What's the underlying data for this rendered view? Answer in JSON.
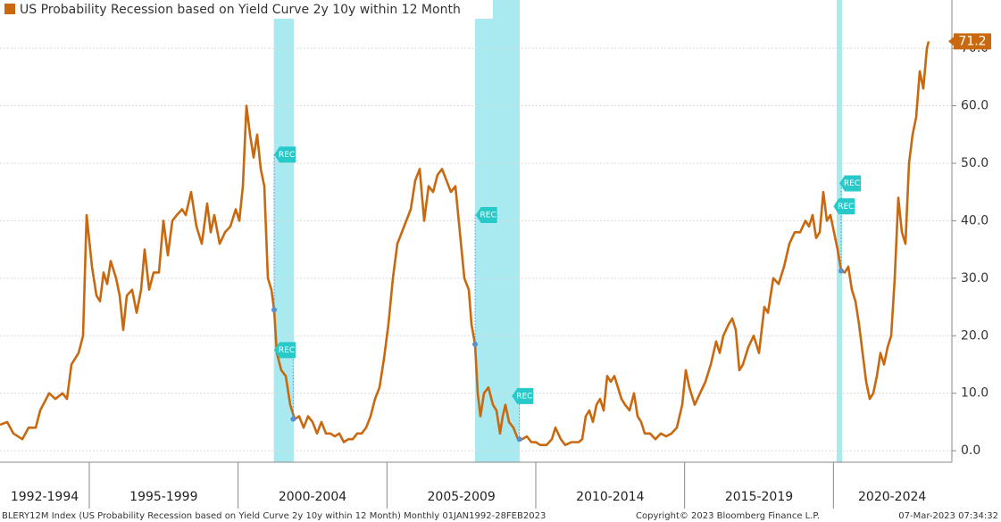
{
  "chart_data": {
    "type": "line",
    "legend_text": "US Probability Recession based on Yield Curve 2y 10y within 12 Month",
    "footer_left": "BLERY12M Index (US Probability Recession based on Yield Curve 2y 10y within 12 Month)  Monthly 01JAN1992-28FEB2023",
    "footer_center": "Copyright© 2023 Bloomberg Finance L.P.",
    "footer_right": "07-Mar-2023 07:34:32",
    "xlim": [
      1992,
      2023.95
    ],
    "ylim": [
      -2,
      78.4
    ],
    "yticks": [
      {
        "value": 0,
        "label": "0.0"
      },
      {
        "value": 10,
        "label": "10.0"
      },
      {
        "value": 20,
        "label": "20.0"
      },
      {
        "value": 30,
        "label": "30.0"
      },
      {
        "value": 40,
        "label": "40.0"
      },
      {
        "value": 50,
        "label": "50.0"
      },
      {
        "value": 60,
        "label": "60.0"
      },
      {
        "value": 70,
        "label": "70.0"
      }
    ],
    "grid": true,
    "periods": [
      {
        "label": "1992-1994",
        "start": 1992,
        "end": 1995
      },
      {
        "label": "1995-1999",
        "start": 1995,
        "end": 2000
      },
      {
        "label": "2000-2004",
        "start": 2000,
        "end": 2005
      },
      {
        "label": "2005-2009",
        "start": 2005,
        "end": 2010
      },
      {
        "label": "2010-2014",
        "start": 2010,
        "end": 2015
      },
      {
        "label": "2015-2019",
        "start": 2015,
        "end": 2020
      },
      {
        "label": "2020-2024",
        "start": 2020,
        "end": 2025
      }
    ],
    "recessions": [
      {
        "start": 2001.2,
        "end": 2001.87
      },
      {
        "start": 2007.96,
        "end": 2009.46
      },
      {
        "start": 2020.11,
        "end": 2020.29
      }
    ],
    "recession_color": "#a9eaf0",
    "events": [
      {
        "label": "REC",
        "x": 2001.21,
        "y": 51.5,
        "dot_x": 2001.21,
        "dot_y": 24.5
      },
      {
        "label": "REC",
        "x": 2001.21,
        "y": 17.5,
        "dot_x": 2001.85,
        "dot_y": 5.5
      },
      {
        "label": "REC",
        "x": 2007.98,
        "y": 41,
        "dot_x": 2007.96,
        "dot_y": 18.5
      },
      {
        "label": "REC",
        "x": 2009.2,
        "y": 9.5,
        "dot_x": 2009.45,
        "dot_y": 2
      },
      {
        "label": "REC",
        "x": 2020.0,
        "y": 42.5
      },
      {
        "label": "REC",
        "x": 2020.2,
        "y": 46.5,
        "dot_x": 2020.26,
        "dot_y": 31.3
      }
    ],
    "series": [
      {
        "name": "US Probability Recession based on Yield Curve 2y 10y within 12 Month",
        "color": "#c8680f",
        "last_value_label": "71.2",
        "x": [
          1992.0,
          1992.24,
          1992.45,
          1992.75,
          1992.96,
          1993.2,
          1993.35,
          1993.65,
          1993.86,
          1994.1,
          1994.25,
          1994.4,
          1994.64,
          1994.79,
          1994.91,
          1995.09,
          1995.24,
          1995.36,
          1995.48,
          1995.6,
          1995.72,
          1995.9,
          1996.02,
          1996.14,
          1996.26,
          1996.44,
          1996.59,
          1996.74,
          1996.86,
          1997.01,
          1997.16,
          1997.34,
          1997.49,
          1997.64,
          1997.79,
          1997.94,
          1998.12,
          1998.24,
          1998.42,
          1998.6,
          1998.78,
          1998.96,
          1999.08,
          1999.2,
          1999.38,
          1999.56,
          1999.74,
          1999.92,
          2000.04,
          2000.16,
          2000.28,
          2000.4,
          2000.52,
          2000.64,
          2000.76,
          2000.88,
          2001.0,
          2001.12,
          2001.21,
          2001.3,
          2001.45,
          2001.6,
          2001.75,
          2001.9,
          2002.05,
          2002.2,
          2002.35,
          2002.5,
          2002.65,
          2002.8,
          2002.95,
          2003.1,
          2003.25,
          2003.4,
          2003.55,
          2003.7,
          2003.85,
          2004.0,
          2004.15,
          2004.3,
          2004.45,
          2004.6,
          2004.75,
          2004.9,
          2005.05,
          2005.2,
          2005.35,
          2005.5,
          2005.65,
          2005.8,
          2005.95,
          2006.1,
          2006.25,
          2006.4,
          2006.55,
          2006.7,
          2006.85,
          2007.0,
          2007.15,
          2007.3,
          2007.45,
          2007.6,
          2007.75,
          2007.84,
          2007.96,
          2008.05,
          2008.14,
          2008.26,
          2008.41,
          2008.56,
          2008.68,
          2008.8,
          2008.89,
          2008.98,
          2009.1,
          2009.25,
          2009.4,
          2009.55,
          2009.7,
          2009.85,
          2010.0,
          2010.15,
          2010.36,
          2010.54,
          2010.66,
          2010.84,
          2010.99,
          2011.2,
          2011.44,
          2011.56,
          2011.68,
          2011.8,
          2011.92,
          2012.04,
          2012.16,
          2012.28,
          2012.4,
          2012.52,
          2012.64,
          2012.76,
          2012.88,
          2013.0,
          2013.15,
          2013.3,
          2013.42,
          2013.54,
          2013.66,
          2013.84,
          2014.02,
          2014.2,
          2014.38,
          2014.56,
          2014.74,
          2014.92,
          2015.04,
          2015.16,
          2015.34,
          2015.52,
          2015.7,
          2015.88,
          2016.06,
          2016.18,
          2016.3,
          2016.48,
          2016.6,
          2016.72,
          2016.84,
          2016.96,
          2017.14,
          2017.32,
          2017.5,
          2017.68,
          2017.8,
          2017.98,
          2018.16,
          2018.34,
          2018.52,
          2018.7,
          2018.88,
          2019.06,
          2019.18,
          2019.3,
          2019.42,
          2019.54,
          2019.66,
          2019.78,
          2019.9,
          2020.02,
          2020.14,
          2020.26,
          2020.38,
          2020.5,
          2020.62,
          2020.74,
          2020.86,
          2020.98,
          2021.1,
          2021.22,
          2021.34,
          2021.46,
          2021.58,
          2021.7,
          2021.82,
          2021.94,
          2022.06,
          2022.18,
          2022.3,
          2022.42,
          2022.54,
          2022.66,
          2022.78,
          2022.9,
          2023.02,
          2023.14,
          2023.2
        ],
        "values": [
          4.5,
          5,
          3,
          2,
          4,
          4,
          7,
          10,
          9,
          10,
          9,
          15,
          17,
          20,
          41,
          32,
          27,
          26,
          31,
          29,
          33,
          30,
          27,
          21,
          27,
          28,
          24,
          28,
          35,
          28,
          31,
          31,
          40,
          34,
          40,
          41,
          42,
          41,
          45,
          39,
          36,
          43,
          38,
          41,
          36,
          38,
          39,
          42,
          40,
          46,
          60,
          55,
          51,
          55,
          49,
          46,
          30,
          28,
          24.5,
          17,
          14,
          13,
          8,
          5.5,
          6,
          4,
          6,
          5,
          3,
          5,
          3,
          3,
          2.5,
          3,
          1.5,
          2,
          2,
          3,
          3,
          4,
          6,
          9,
          11,
          16,
          22,
          30,
          36,
          38,
          40,
          42,
          47,
          49,
          40,
          46,
          45,
          48,
          49,
          47,
          45,
          46,
          38,
          30,
          28,
          22,
          18.5,
          10,
          6,
          10,
          11,
          8,
          7,
          3,
          6,
          8,
          5,
          4,
          2,
          2,
          2.5,
          1.5,
          1.5,
          1,
          1,
          2,
          4,
          2,
          1,
          1.5,
          1.5,
          2,
          6,
          7,
          5,
          8,
          9,
          7,
          13,
          12,
          13,
          11,
          9,
          8,
          7,
          10,
          6,
          5,
          3,
          3,
          2,
          3,
          2.5,
          3,
          4,
          8,
          14,
          11,
          8,
          10,
          12,
          15,
          19,
          17,
          20,
          22,
          23,
          21,
          14,
          15,
          18,
          20,
          17,
          25,
          24,
          30,
          29,
          32,
          36,
          38,
          38,
          40,
          39,
          41,
          37,
          38,
          45,
          40,
          41,
          38,
          35,
          31.3,
          31,
          32,
          28,
          26,
          22,
          17,
          12,
          9,
          10,
          13,
          17,
          15,
          18,
          20,
          30,
          44,
          38,
          36,
          50,
          55,
          58,
          66,
          63,
          70,
          71.2
        ]
      }
    ]
  }
}
